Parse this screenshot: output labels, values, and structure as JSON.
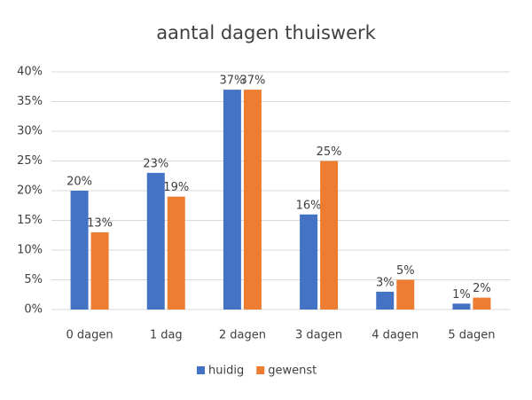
{
  "chart_data": {
    "type": "bar",
    "title": "aantal dagen thuiswerk",
    "categories": [
      "0 dagen",
      "1 dag",
      "2 dagen",
      "3 dagen",
      "4 dagen",
      "5 dagen"
    ],
    "series": [
      {
        "name": "huidig",
        "color": "#4472c4",
        "values": [
          20,
          23,
          37,
          16,
          3,
          1
        ],
        "value_labels": [
          "20%",
          "23%",
          "37%",
          "16%",
          "3%",
          "1%"
        ]
      },
      {
        "name": "gewenst",
        "color": "#ed7d31",
        "values": [
          13,
          19,
          37,
          25,
          5,
          2
        ],
        "value_labels": [
          "13%",
          "19%",
          "37%",
          "25%",
          "5%",
          "2%"
        ]
      }
    ],
    "ylim": [
      0,
      40
    ],
    "yticks": [
      {
        "value": 0,
        "label": "0%"
      },
      {
        "value": 5,
        "label": "5%"
      },
      {
        "value": 10,
        "label": "10%"
      },
      {
        "value": 15,
        "label": "15%"
      },
      {
        "value": 20,
        "label": "20%"
      },
      {
        "value": 25,
        "label": "25%"
      },
      {
        "value": 30,
        "label": "30%"
      },
      {
        "value": 35,
        "label": "35%"
      },
      {
        "value": 40,
        "label": "40%"
      }
    ],
    "grid": true,
    "legend": "bottom"
  }
}
